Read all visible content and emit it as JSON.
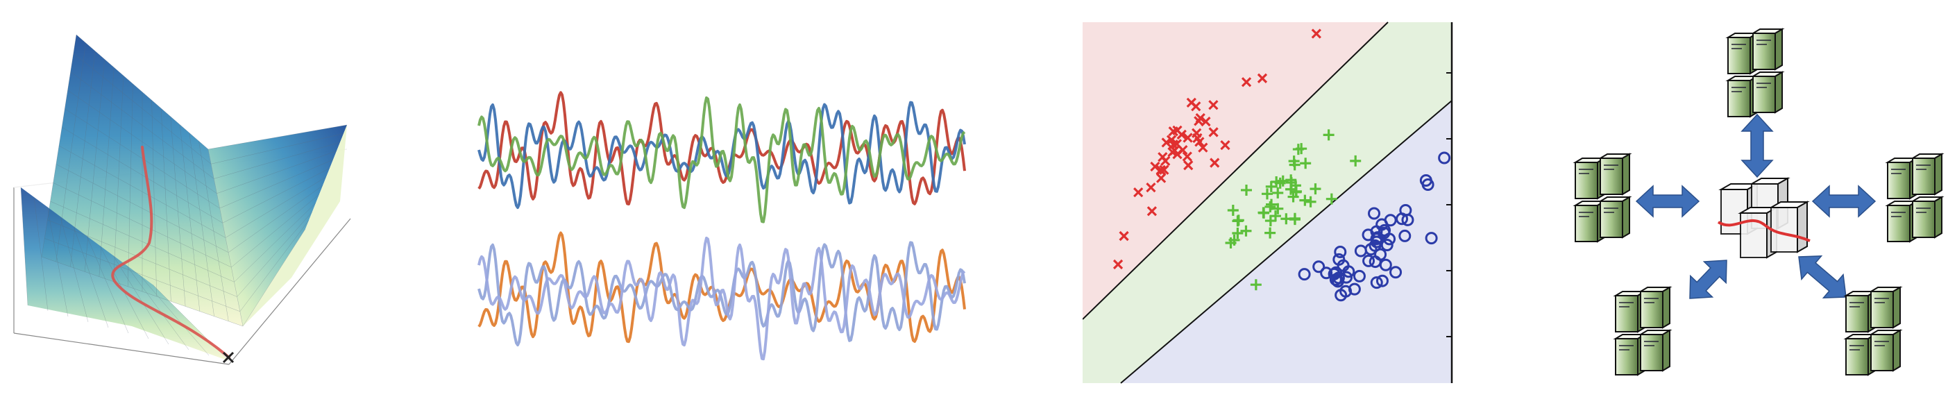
{
  "figure": {
    "panels": [
      {
        "id": "loss-surface",
        "kind": "3d-surface-with-descent-path",
        "colormap": [
          "#f7f7d4",
          "#c9e8b8",
          "#7fc4c0",
          "#3d8fbf",
          "#1f4f9a"
        ],
        "path_color": "#d9534f"
      },
      {
        "id": "signals",
        "kind": "time-series",
        "group_top_colors": [
          "#c0392b",
          "#3a6fb0",
          "#6aa84f"
        ],
        "group_bottom_colors": [
          "#e07b2a",
          "#8fa3d8",
          "#9aa7e0"
        ]
      },
      {
        "id": "classification",
        "kind": "scatter-with-decision-boundaries",
        "region_colors": {
          "class_a": "#f7e1e1",
          "class_b": "#e4f1dd",
          "class_c": "#e2e4f4"
        },
        "marker_colors": {
          "x": "#e03030",
          "plus": "#5cbf3a",
          "circle": "#2b3ba8"
        }
      },
      {
        "id": "distributed",
        "kind": "network-diagram",
        "server_count": 5,
        "arrow_color": "#3f6fb8",
        "server_color": "#a6c48a"
      }
    ]
  }
}
